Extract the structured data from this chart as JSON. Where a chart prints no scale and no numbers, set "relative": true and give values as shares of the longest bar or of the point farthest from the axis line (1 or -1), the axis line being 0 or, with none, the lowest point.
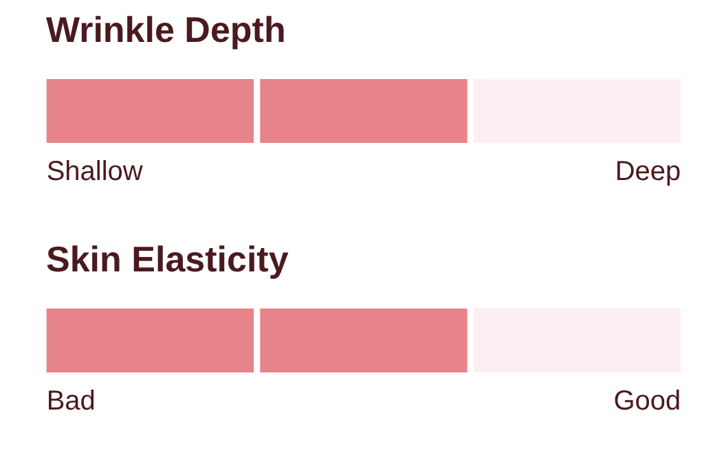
{
  "chart_data": [
    {
      "type": "bar",
      "title": "Wrinkle Depth",
      "categories": [
        null,
        null,
        null
      ],
      "relative": true,
      "values": [
        1,
        1,
        1
      ],
      "colors": [
        "#e7838a",
        "#e7838a",
        "#fdeef1"
      ],
      "annotations": [
        "Shallow",
        "Deep"
      ]
    },
    {
      "type": "bar",
      "title": "Skin Elasticity",
      "categories": [
        null,
        null,
        null
      ],
      "relative": true,
      "values": [
        1,
        1,
        1
      ],
      "colors": [
        "#e7838a",
        "#e7838a",
        "#fdeef1"
      ],
      "annotations": [
        "Bad",
        "Good"
      ]
    }
  ]
}
